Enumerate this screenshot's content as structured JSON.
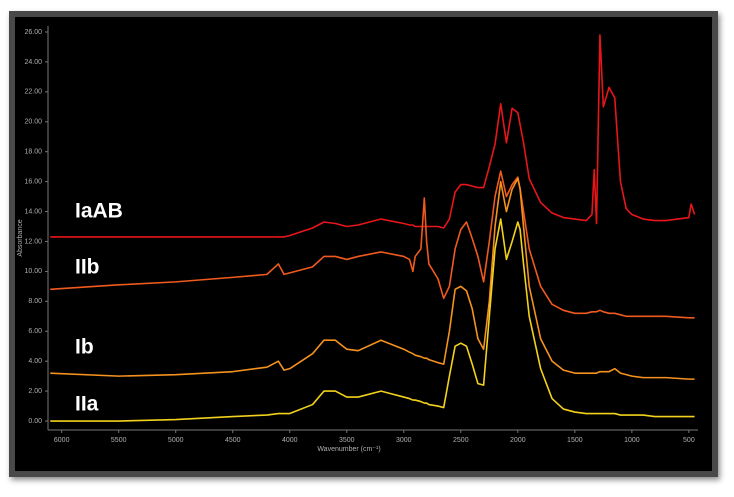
{
  "chart_data": {
    "type": "line",
    "xlabel": "Wavenumber (cm⁻¹)",
    "ylabel": "Absorbance",
    "xlim": [
      6120,
      420
    ],
    "ylim": [
      -0.6,
      26.4
    ],
    "xticks": [
      6000,
      5500,
      5000,
      4500,
      4000,
      3500,
      3000,
      2500,
      2000,
      1500,
      1000,
      500
    ],
    "yticks": [
      {
        "value": 0,
        "label": "0.00"
      },
      {
        "value": 2,
        "label": "2.00"
      },
      {
        "value": 4,
        "label": "4.00"
      },
      {
        "value": 6,
        "label": "6.00"
      },
      {
        "value": 8,
        "label": "8.00"
      },
      {
        "value": 10,
        "label": "10.00"
      },
      {
        "value": 12,
        "label": "12.00"
      },
      {
        "value": 14,
        "label": "14.00"
      },
      {
        "value": 16,
        "label": "16.00"
      },
      {
        "value": 18,
        "label": "18.00"
      },
      {
        "value": 20,
        "label": "20.00"
      },
      {
        "value": 22,
        "label": "22.00"
      },
      {
        "value": 24,
        "label": "24.00"
      },
      {
        "value": 26,
        "label": "26.00"
      }
    ],
    "x": [
      6100,
      5500,
      5000,
      4500,
      4200,
      4100,
      4050,
      4000,
      3800,
      3700,
      3600,
      3500,
      3400,
      3200,
      3000,
      2950,
      2920,
      2900,
      2850,
      2820,
      2800,
      2780,
      2700,
      2650,
      2600,
      2550,
      2500,
      2450,
      2400,
      2350,
      2300,
      2250,
      2200,
      2150,
      2100,
      2050,
      2000,
      1980,
      1950,
      1900,
      1800,
      1700,
      1600,
      1500,
      1400,
      1350,
      1330,
      1310,
      1280,
      1250,
      1200,
      1150,
      1100,
      1050,
      1000,
      900,
      800,
      700,
      500,
      480,
      450
    ],
    "series": [
      {
        "name": "IaAB",
        "color": "#e8161a",
        "values": [
          12.3,
          12.3,
          12.3,
          12.3,
          12.3,
          12.3,
          12.3,
          12.4,
          12.9,
          13.3,
          13.2,
          13.0,
          13.1,
          13.5,
          13.2,
          13.1,
          13.1,
          13.0,
          13.0,
          13.0,
          13.0,
          13.0,
          13.0,
          12.9,
          13.5,
          15.3,
          15.8,
          15.8,
          15.7,
          15.6,
          15.6,
          17,
          18.5,
          21.2,
          18.6,
          20.9,
          20.6,
          19.8,
          18.6,
          16.2,
          14.6,
          13.9,
          13.6,
          13.5,
          13.4,
          13.8,
          16.8,
          13.2,
          25.8,
          21.0,
          22.3,
          21.6,
          16.0,
          14.2,
          13.8,
          13.5,
          13.4,
          13.4,
          13.6,
          14.5,
          13.8
        ]
      },
      {
        "name": "IIb",
        "color": "#f05a1e",
        "values": [
          8.8,
          9.1,
          9.3,
          9.6,
          9.8,
          10.5,
          9.8,
          9.9,
          10.3,
          11.0,
          11.0,
          10.8,
          11.0,
          11.3,
          11.0,
          10.8,
          10.0,
          11.0,
          11.5,
          14.9,
          12.0,
          10.5,
          9.5,
          8.2,
          9.0,
          11.5,
          12.8,
          13.3,
          12.2,
          11.0,
          9.3,
          12.0,
          15.0,
          16.7,
          15.0,
          15.8,
          16.3,
          15.5,
          14.0,
          11.5,
          9.0,
          7.8,
          7.4,
          7.2,
          7.2,
          7.3,
          7.3,
          7.3,
          7.4,
          7.3,
          7.2,
          7.2,
          7.1,
          7.0,
          7.0,
          7.0,
          7.0,
          7.0,
          6.9,
          6.9,
          6.9
        ]
      },
      {
        "name": "Ib",
        "color": "#f5921e",
        "values": [
          3.2,
          3.0,
          3.1,
          3.3,
          3.6,
          4.0,
          3.4,
          3.5,
          4.5,
          5.4,
          5.4,
          4.8,
          4.7,
          5.4,
          4.8,
          4.6,
          4.5,
          4.4,
          4.3,
          4.2,
          4.2,
          4.1,
          3.9,
          3.8,
          6.0,
          8.8,
          9.0,
          8.7,
          7.5,
          5.5,
          4.8,
          8.0,
          13.0,
          16.0,
          14.0,
          15.5,
          16.2,
          15.5,
          13.0,
          9.0,
          5.5,
          4.0,
          3.4,
          3.2,
          3.2,
          3.2,
          3.2,
          3.2,
          3.3,
          3.3,
          3.3,
          3.5,
          3.2,
          3.1,
          3.0,
          2.9,
          2.9,
          2.9,
          2.8,
          2.8,
          2.8
        ]
      },
      {
        "name": "IIa",
        "color": "#f2d21c",
        "values": [
          0.0,
          0.0,
          0.1,
          0.3,
          0.4,
          0.5,
          0.5,
          0.5,
          1.1,
          2.0,
          2.0,
          1.6,
          1.6,
          2.0,
          1.6,
          1.5,
          1.4,
          1.4,
          1.3,
          1.2,
          1.2,
          1.1,
          1.0,
          0.9,
          3.0,
          5.0,
          5.2,
          5.0,
          3.8,
          2.5,
          2.4,
          7.0,
          11.5,
          13.5,
          10.8,
          12.0,
          13.3,
          12.8,
          10.5,
          7.0,
          3.5,
          1.5,
          0.8,
          0.6,
          0.5,
          0.5,
          0.5,
          0.5,
          0.5,
          0.5,
          0.5,
          0.5,
          0.4,
          0.4,
          0.4,
          0.4,
          0.3,
          0.3,
          0.3,
          0.3,
          0.3
        ]
      }
    ]
  }
}
